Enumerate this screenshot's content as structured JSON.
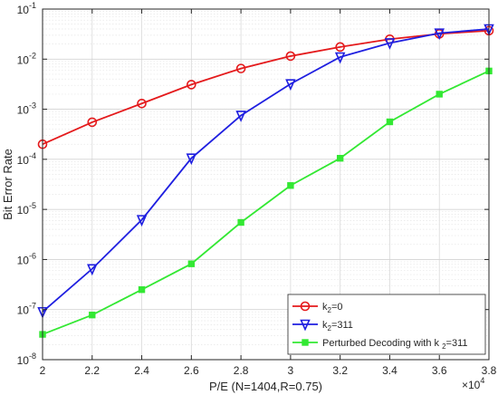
{
  "chart_data": {
    "type": "line",
    "xlabel": "P/E (N=1404,R=0.75)",
    "ylabel": "Bit Error Rate",
    "x_multiplier_base": "×10",
    "x_multiplier_exp": "4",
    "xlim": [
      2,
      3.8
    ],
    "ylim": [
      1e-08,
      0.1
    ],
    "yscale": "log",
    "grid": true,
    "legend_position": "bottom-right",
    "x_ticks": [
      "2",
      "2.2",
      "2.4",
      "2.6",
      "2.8",
      "3",
      "3.2",
      "3.4",
      "3.6",
      "3.8"
    ],
    "y_ticks": [
      {
        "base": "10",
        "exp": "-8",
        "value": 1e-08
      },
      {
        "base": "10",
        "exp": "-7",
        "value": 1e-07
      },
      {
        "base": "10",
        "exp": "-6",
        "value": 1e-06
      },
      {
        "base": "10",
        "exp": "-5",
        "value": 1e-05
      },
      {
        "base": "10",
        "exp": "-4",
        "value": 0.0001
      },
      {
        "base": "10",
        "exp": "-3",
        "value": 0.001
      },
      {
        "base": "10",
        "exp": "-2",
        "value": 0.01
      },
      {
        "base": "10",
        "exp": "-1",
        "value": 0.1
      }
    ],
    "x": [
      2.0,
      2.2,
      2.4,
      2.6,
      2.8,
      3.0,
      3.2,
      3.4,
      3.6,
      3.8
    ],
    "series": [
      {
        "name": "k2=0",
        "legend_parts": [
          "k",
          "2",
          "=0"
        ],
        "color": "#e41a1c",
        "marker": "circle",
        "values": [
          0.0002,
          0.00055,
          0.0013,
          0.0031,
          0.0065,
          0.0115,
          0.0175,
          0.025,
          0.032,
          0.037
        ]
      },
      {
        "name": "k2=311",
        "legend_parts": [
          "k",
          "2",
          "=311"
        ],
        "color": "#1f1fe0",
        "marker": "triangle-down",
        "values": [
          9e-08,
          6.5e-07,
          6.2e-06,
          0.000105,
          0.00075,
          0.0032,
          0.011,
          0.021,
          0.033,
          0.04
        ]
      },
      {
        "name": "Perturbed Decoding with k2=311",
        "legend_parts": [
          "Perturbed Decoding with k ",
          "2",
          "=311"
        ],
        "color": "#33e833",
        "marker": "square",
        "values": [
          3.2e-08,
          7.8e-08,
          2.5e-07,
          8.2e-07,
          5.5e-06,
          3e-05,
          0.000105,
          0.00056,
          0.002,
          0.0058
        ]
      }
    ]
  }
}
